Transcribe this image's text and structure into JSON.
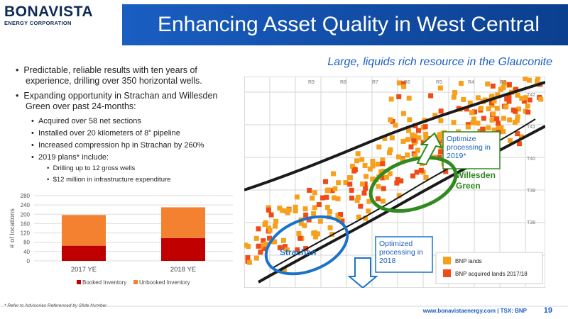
{
  "logo": {
    "main": "BONAVISTA",
    "sub": "ENERGY CORPORATION"
  },
  "title": "Enhancing Asset Quality in West Central",
  "subtitle": "Large, liquids rich resource in the Glauconite",
  "bullets": [
    {
      "level": 1,
      "text": "Predictable, reliable results with ten years of experience, drilling over 350 horizontal wells."
    },
    {
      "level": 1,
      "text": "Expanding opportunity in Strachan and Willesden Green over past 24-months:"
    },
    {
      "level": 2,
      "text": "Acquired over 58 net sections"
    },
    {
      "level": 2,
      "text": "Installed over 20 kilometers of 8” pipeline"
    },
    {
      "level": 2,
      "text": "Increased compression hp in Strachan by 260%"
    },
    {
      "level": 2,
      "text": "2019 plans* include:"
    },
    {
      "level": 3,
      "text": "Drilling up to 12 gross wells"
    },
    {
      "level": 3,
      "text": "$12 million in infrastructure expenditure"
    }
  ],
  "chart_data": {
    "type": "bar",
    "stacked": true,
    "categories": [
      "2017 YE",
      "2018 YE"
    ],
    "series": [
      {
        "name": "Booked Inventory",
        "values": [
          65,
          98
        ],
        "color": "#c00000"
      },
      {
        "name": "Unbooked Inventory",
        "values": [
          132,
          132
        ],
        "color": "#f4812f"
      }
    ],
    "ylabel": "# of locations",
    "yticks": [
      0,
      40,
      80,
      120,
      160,
      200,
      240,
      280
    ],
    "ylim": [
      0,
      280
    ],
    "legend": "bottom"
  },
  "map": {
    "ranges": [
      "R9",
      "R8",
      "R7",
      "R6",
      "R5",
      "R4",
      "R3"
    ],
    "townships": [
      "T42",
      "T41",
      "T40",
      "T39",
      "T38"
    ],
    "callout_willesden": "Optimize processing in 2019*",
    "label_willesden": "Willesden Green",
    "callout_strachan": "Optimized processing in 2018",
    "label_strachan": "Strachan",
    "legend": [
      {
        "label": "BNP lands",
        "color": "#f6a11d"
      },
      {
        "label": "BNP acquired lands 2017/18",
        "color": "#f04a16"
      }
    ]
  },
  "footer": {
    "note": "* Refer to Advisories Referenced by Slide Number",
    "url": "www.bonavistaenergy.com  |  TSX: BNP",
    "page": "19"
  }
}
